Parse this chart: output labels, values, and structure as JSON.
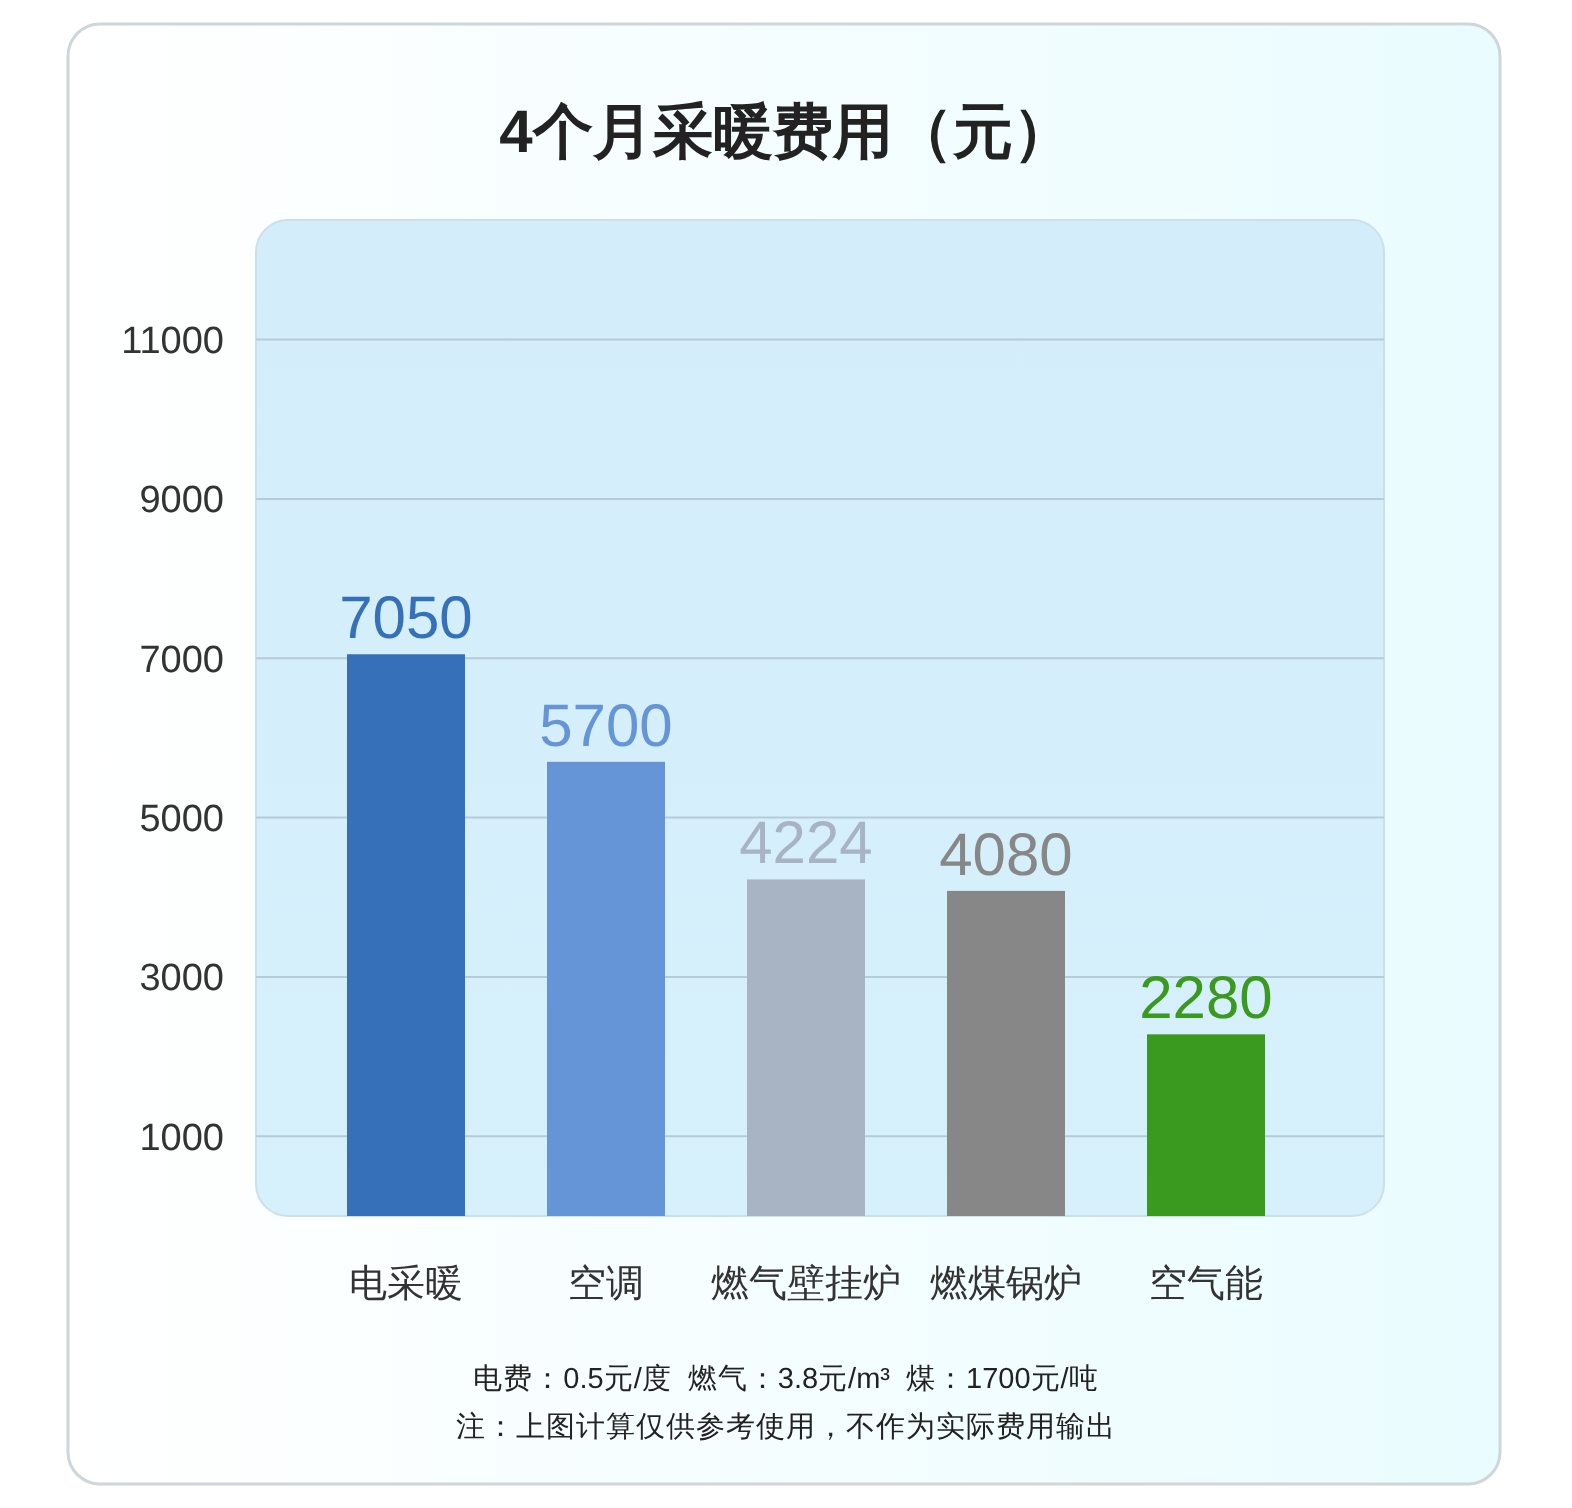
{
  "chart_data": {
    "type": "bar",
    "title": "4个月采暖费用（元）",
    "categories": [
      "电采暖",
      "空调",
      "燃气壁挂炉",
      "燃煤锅炉",
      "空气能"
    ],
    "values": [
      7050,
      5700,
      4224,
      4080,
      2280
    ],
    "colors": [
      "#3570b8",
      "#6595d7",
      "#a8b4c4",
      "#878787",
      "#3a9a1f"
    ],
    "ylim": [
      0,
      12500
    ],
    "yticks": [
      1000,
      3000,
      5000,
      7000,
      9000,
      11000
    ],
    "grid": "y",
    "data_labels": true,
    "annotations": [
      "电费：0.5元/度  燃气：3.8元/m³  煤：1700元/吨",
      "注：上图计算仅供参考使用，不作为实际费用输出"
    ]
  }
}
